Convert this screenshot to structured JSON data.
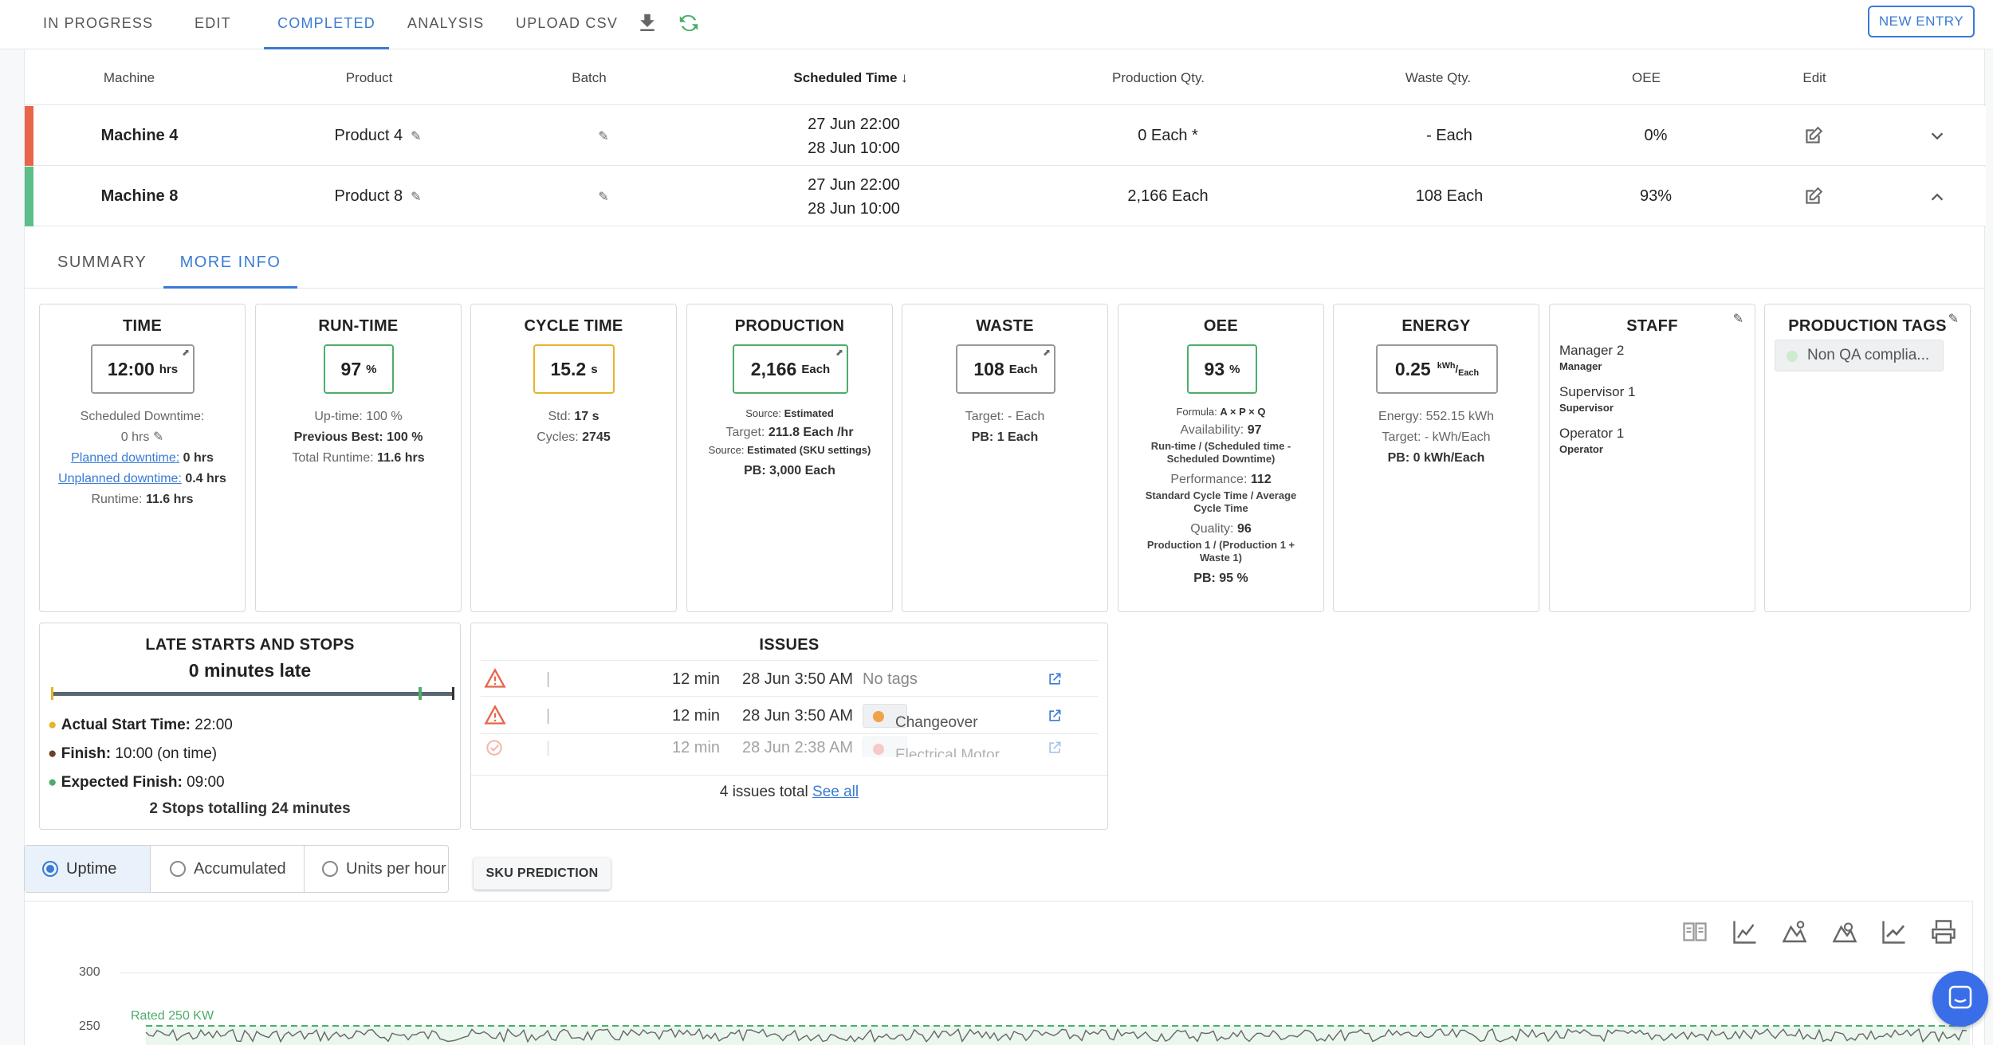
{
  "tabs": [
    {
      "label": "IN PROGRESS"
    },
    {
      "label": "EDIT"
    },
    {
      "label": "COMPLETED"
    },
    {
      "label": "ANALYSIS"
    },
    {
      "label": "UPLOAD CSV"
    }
  ],
  "new_entry_label": "NEW ENTRY",
  "table": {
    "headers": [
      "Machine",
      "Product",
      "Batch",
      "Scheduled Time",
      "Production Qty.",
      "Waste Qty.",
      "OEE",
      "Edit"
    ],
    "rows": [
      {
        "machine": "Machine 4",
        "product": "Product 4",
        "time_start": "27 Jun 22:00",
        "time_end": "28 Jun 10:00",
        "prod_qty": "0 Each *",
        "waste_qty": "- Each",
        "oee": "0%",
        "status_color": "#e8654b"
      },
      {
        "machine": "Machine 8",
        "product": "Product 8",
        "time_start": "27 Jun 22:00",
        "time_end": "28 Jun 10:00",
        "prod_qty": "2,166 Each",
        "waste_qty": "108 Each",
        "oee": "93%",
        "status_color": "#5cbf8a"
      }
    ]
  },
  "subtabs": [
    "SUMMARY",
    "MORE INFO"
  ],
  "cards": {
    "time": {
      "title": "TIME",
      "value": "12:00",
      "unit": "hrs",
      "sched_label": "Scheduled Downtime:",
      "sched_value": "0 hrs",
      "planned_label": "Planned downtime:",
      "planned_value": "0 hrs",
      "unplanned_label": "Unplanned downtime:",
      "unplanned_value": "0.4 hrs",
      "runtime_label": "Runtime:",
      "runtime_value": "11.6 hrs"
    },
    "runtime": {
      "title": "RUN-TIME",
      "value": "97",
      "unit": "%",
      "uptime": "Up-time: 100 %",
      "prev_label": "Previous Best:",
      "prev_value": "100 %",
      "total_label": "Total Runtime:",
      "total_value": "11.6 hrs"
    },
    "cycle": {
      "title": "CYCLE TIME",
      "value": "15.2",
      "unit": "s",
      "std_label": "Std:",
      "std_value": "17 s",
      "cycles_label": "Cycles:",
      "cycles_value": "2745"
    },
    "production": {
      "title": "PRODUCTION",
      "value": "2,166",
      "unit": "Each",
      "source1_label": "Source:",
      "source1_value": "Estimated",
      "target_label": "Target:",
      "target_value": "211.8 Each /hr",
      "source2_label": "Source:",
      "source2_value": "Estimated (SKU settings)",
      "pb": "PB: 3,000 Each"
    },
    "waste": {
      "title": "WASTE",
      "value": "108",
      "unit": "Each",
      "target": "Target: - Each",
      "pb": "PB: 1 Each"
    },
    "oee": {
      "title": "OEE",
      "value": "93",
      "unit": "%",
      "formula_label": "Formula:",
      "formula_value": "A × P × Q",
      "avail_label": "Availability:",
      "avail_value": "97",
      "avail_desc": "Run-time / (Scheduled time - Scheduled Downtime)",
      "perf_label": "Performance:",
      "perf_value": "112",
      "perf_desc": "Standard Cycle Time / Average Cycle Time",
      "qual_label": "Quality:",
      "qual_value": "96",
      "qual_desc": "Production 1 / (Production 1 + Waste 1)",
      "pb": "PB: 95 %"
    },
    "energy": {
      "title": "ENERGY",
      "value": "0.25",
      "unit_top": "kWh",
      "unit_bottom": "Each",
      "energy": "Energy: 552.15 kWh",
      "target": "Target: - kWh/Each",
      "pb": "PB: 0 kWh/Each"
    },
    "staff": {
      "title": "STAFF",
      "members": [
        {
          "name": "Manager 2",
          "role": "Manager"
        },
        {
          "name": "Supervisor 1",
          "role": "Supervisor"
        },
        {
          "name": "Operator 1",
          "role": "Operator"
        }
      ]
    },
    "tags": {
      "title": "PRODUCTION TAGS",
      "tag": "Non QA complia..."
    }
  },
  "late": {
    "title": "LATE STARTS AND STOPS",
    "subtitle": "0 minutes late",
    "actual_label": "Actual Start Time:",
    "actual_value": "22:00",
    "finish_label": "Finish:",
    "finish_value": "10:00 (on time)",
    "expected_label": "Expected Finish:",
    "expected_value": "09:00",
    "stops": "2 Stops totalling 24 minutes"
  },
  "issues": {
    "title": "ISSUES",
    "items": [
      {
        "duration": "12 min",
        "time": "28 Jun 3:50 AM",
        "tag": "No tags",
        "tag_color": ""
      },
      {
        "duration": "12 min",
        "time": "28 Jun 3:50 AM",
        "tag": "Changeover",
        "tag_color": "#f0a24a"
      },
      {
        "duration": "12 min",
        "time": "28 Jun 2:38 AM",
        "tag": "Electrical Motor",
        "tag_color": "#f08a8a"
      }
    ],
    "total": "4 issues total",
    "see_all": "See all"
  },
  "chart_modes": [
    "Uptime",
    "Accumulated",
    "Units per hour"
  ],
  "sku_button": "SKU PREDICTION",
  "chart_data": {
    "type": "line",
    "y_ticks": [
      "300",
      "250"
    ],
    "rated_label": "Rated 250 KW",
    "rated_value": 250
  }
}
